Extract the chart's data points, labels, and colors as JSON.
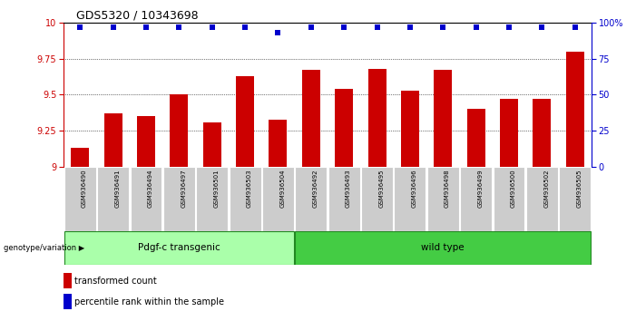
{
  "title": "GDS5320 / 10343698",
  "samples": [
    "GSM936490",
    "GSM936491",
    "GSM936494",
    "GSM936497",
    "GSM936501",
    "GSM936503",
    "GSM936504",
    "GSM936492",
    "GSM936493",
    "GSM936495",
    "GSM936496",
    "GSM936498",
    "GSM936499",
    "GSM936500",
    "GSM936502",
    "GSM936505"
  ],
  "bar_values": [
    9.13,
    9.37,
    9.35,
    9.5,
    9.31,
    9.63,
    9.33,
    9.67,
    9.54,
    9.68,
    9.53,
    9.67,
    9.4,
    9.47,
    9.47,
    9.8
  ],
  "percentile_values": [
    97,
    97,
    97,
    97,
    97,
    97,
    93,
    97,
    97,
    97,
    97,
    97,
    97,
    97,
    97,
    97
  ],
  "bar_color": "#cc0000",
  "dot_color": "#0000cc",
  "ylim_left": [
    9.0,
    10.0
  ],
  "ylim_right": [
    0,
    100
  ],
  "yticks_left": [
    9.0,
    9.25,
    9.5,
    9.75,
    10.0
  ],
  "yticks_right": [
    0,
    25,
    50,
    75,
    100
  ],
  "grid_values": [
    9.25,
    9.5,
    9.75
  ],
  "group1_label": "Pdgf-c transgenic",
  "group2_label": "wild type",
  "group1_count": 7,
  "group2_count": 9,
  "genotype_label": "genotype/variation",
  "legend_bar_label": "transformed count",
  "legend_dot_label": "percentile rank within the sample",
  "bg_color": "#ffffff",
  "tick_area_color": "#cccccc",
  "group1_bg": "#aaffaa",
  "group2_bg": "#44cc44",
  "right_axis_color": "#0000cc",
  "left_axis_color": "#cc0000"
}
